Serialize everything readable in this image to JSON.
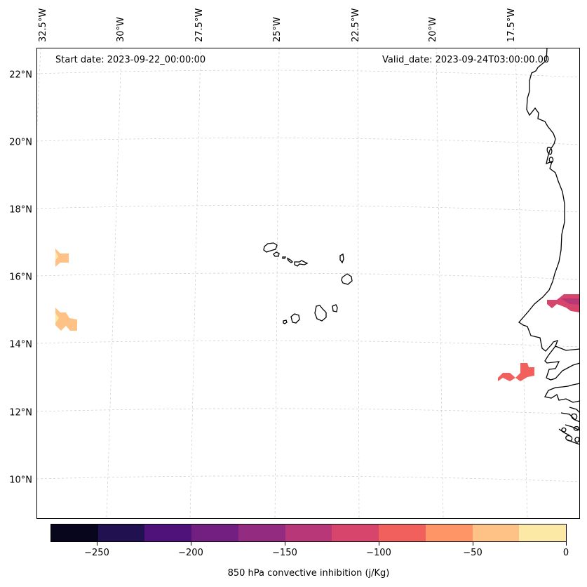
{
  "map": {
    "start_date_text": "Start date: 2023-09-22_00:00:00",
    "valid_date_text": "Valid_date: 2023-09-24T03:00:00.00",
    "lon_labels": [
      "32.5°W",
      "30°W",
      "27.5°W",
      "25°W",
      "22.5°W",
      "20°W",
      "17.5°W"
    ],
    "lat_labels": [
      "22°N",
      "20°N",
      "18°N",
      "16°N",
      "14°N",
      "12°N",
      "10°N"
    ],
    "gridlines": true
  },
  "colorbar": {
    "label": "850 hPa convective inhibition (j/Kg)",
    "tick_labels": [
      "−250",
      "−200",
      "−150",
      "−100",
      "−50",
      "0"
    ],
    "levels": [
      -275,
      -250,
      -225,
      -200,
      -175,
      -150,
      -125,
      -100,
      -75,
      -50,
      -25,
      0
    ],
    "colors": [
      "#07061c",
      "#221150",
      "#4f127b",
      "#721f81",
      "#932b80",
      "#b73779",
      "#d8456c",
      "#f1605d",
      "#fd9567",
      "#fec287",
      "#fde9a6"
    ]
  },
  "features": {
    "regions": [
      "Cape Verde islands",
      "West African coastline (Senegal, Gambia, Guinea-Bissau)"
    ],
    "cin_patches": [
      {
        "area": "west edge near 16.5°N",
        "value_range": "-50 to -25"
      },
      {
        "area": "west edge near 14.7°N",
        "value_range": "-50 to 0"
      },
      {
        "area": "east edge near 15.2°N",
        "value_range": "-150 to -100"
      },
      {
        "area": "east near 13°N",
        "value_range": "-100 to -75"
      }
    ]
  }
}
